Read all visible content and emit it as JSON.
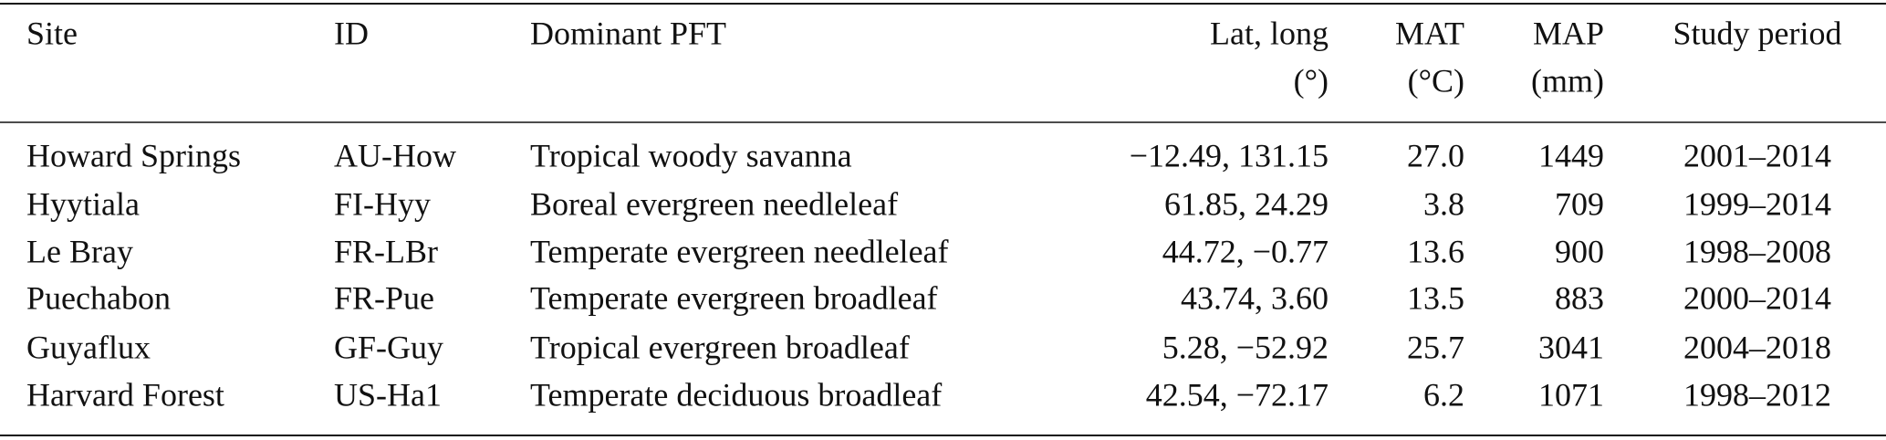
{
  "table": {
    "columns": [
      [
        "Site"
      ],
      [
        "ID"
      ],
      [
        "Dominant PFT"
      ],
      [
        "Lat, long",
        "(°)"
      ],
      [
        "MAT",
        "(°C)"
      ],
      [
        "MAP",
        "(mm)"
      ],
      [
        "Study period"
      ]
    ],
    "rows": [
      [
        "Howard Springs",
        "AU-How",
        "Tropical woody savanna",
        "−12.49, 131.15",
        "27.0",
        "1449",
        "2001–2014"
      ],
      [
        "Hyytiala",
        "FI-Hyy",
        "Boreal evergreen needleleaf",
        "61.85, 24.29",
        "3.8",
        "709",
        "1999–2014"
      ],
      [
        "Le Bray",
        "FR-LBr",
        "Temperate evergreen needleleaf",
        "44.72, −0.77",
        "13.6",
        "900",
        "1998–2008"
      ],
      [
        "Puechabon",
        "FR-Pue",
        "Temperate evergreen broadleaf",
        "43.74, 3.60",
        "13.5",
        "883",
        "2000–2014"
      ],
      [
        "Guyaflux",
        "GF-Guy",
        "Tropical evergreen broadleaf",
        "5.28, −52.92",
        "25.7",
        "3041",
        "2004–2018"
      ],
      [
        "Harvard Forest",
        "US-Ha1",
        "Temperate deciduous broadleaf",
        "42.54, −72.17",
        "6.2",
        "1071",
        "1998–2012"
      ]
    ]
  }
}
